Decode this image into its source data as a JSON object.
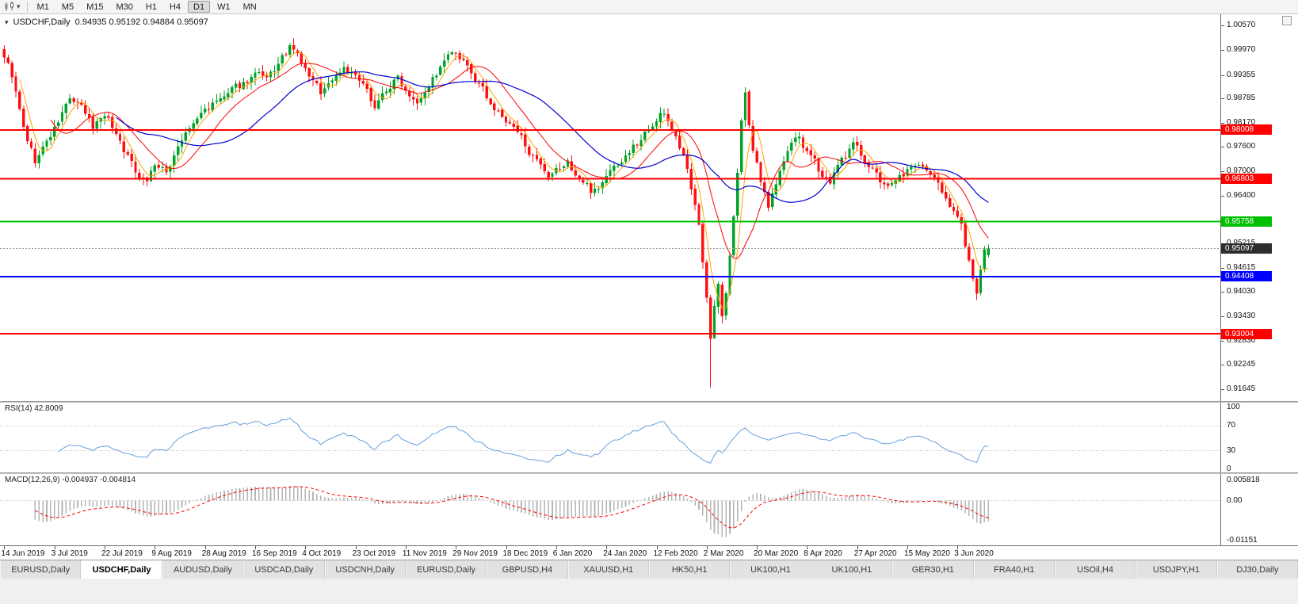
{
  "app": {
    "toolbar": {
      "timeframes": [
        "M1",
        "M5",
        "M15",
        "M30",
        "H1",
        "H4",
        "D1",
        "W1",
        "MN"
      ],
      "active_timeframe": "D1"
    }
  },
  "chart": {
    "title": "USDCHF,Daily",
    "ohlc_text": "0.94935 0.95192 0.94884 0.95097",
    "last_price": "0.95097",
    "last_price_tag_color": "#2e2e2e",
    "price_ticks": [
      "1.00570",
      "0.99970",
      "0.99355",
      "0.98785",
      "0.98170",
      "0.97600",
      "0.97000",
      "0.96400",
      "0.95215",
      "0.94615",
      "0.94030",
      "0.93430",
      "0.92830",
      "0.92245",
      "0.91645"
    ],
    "hlines": [
      {
        "price": 0.98008,
        "label": "0.98008",
        "color": "#ff0000"
      },
      {
        "price": 0.96803,
        "label": "0.96803",
        "color": "#ff0000"
      },
      {
        "price": 0.95758,
        "label": "0.95758",
        "color": "#00c000"
      },
      {
        "price": 0.94408,
        "label": "0.94408",
        "color": "#0000ff"
      },
      {
        "price": 0.93004,
        "label": "0.93004",
        "color": "#ff0000"
      }
    ],
    "colors": {
      "up": "#00a327",
      "down": "#ff0f0f",
      "ma_fast": "#ffa500",
      "ma_mid": "#ff0000",
      "ma_slow": "#0000d0",
      "rsi_line": "#6a9fdc",
      "macd_hist": "#b5b5b5",
      "macd_signal": "#ff0000",
      "last_price_line": "#999999"
    }
  },
  "rsi": {
    "label": "RSI(14) 42.8009",
    "ticks": [
      "100",
      "70",
      "30",
      "0"
    ],
    "dashed_levels": [
      70,
      30
    ]
  },
  "macd": {
    "label": "MACD(12,26,9) -0.004937 -0.004814",
    "ticks": [
      "0.005818",
      "0.00",
      "-0.01151"
    ]
  },
  "dates": [
    {
      "label": "14 Jun 2019",
      "i": 0
    },
    {
      "label": "3 Jul 2019",
      "i": 13
    },
    {
      "label": "22 Jul 2019",
      "i": 26
    },
    {
      "label": "9 Aug 2019",
      "i": 39
    },
    {
      "label": "28 Aug 2019",
      "i": 52
    },
    {
      "label": "16 Sep 2019",
      "i": 65
    },
    {
      "label": "4 Oct 2019",
      "i": 78
    },
    {
      "label": "23 Oct 2019",
      "i": 91
    },
    {
      "label": "11 Nov 2019",
      "i": 104
    },
    {
      "label": "29 Nov 2019",
      "i": 117
    },
    {
      "label": "18 Dec 2019",
      "i": 130
    },
    {
      "label": "6 Jan 2020",
      "i": 143
    },
    {
      "label": "24 Jan 2020",
      "i": 156
    },
    {
      "label": "12 Feb 2020",
      "i": 169
    },
    {
      "label": "2 Mar 2020",
      "i": 182
    },
    {
      "label": "20 Mar 2020",
      "i": 195
    },
    {
      "label": "8 Apr 2020",
      "i": 208
    },
    {
      "label": "27 Apr 2020",
      "i": 221
    },
    {
      "label": "15 May 2020",
      "i": 234
    },
    {
      "label": "3 Jun 2020",
      "i": 247
    }
  ],
  "tabs": {
    "active_index": 1,
    "items": [
      "EURUSD,Daily",
      "USDCHF,Daily",
      "AUDUSD,Daily",
      "USDCAD,Daily",
      "USDCNH,Daily",
      "EURUSD,Daily",
      "GBPUSD,H4",
      "XAUUSD,H1",
      "HK50,H1",
      "UK100,H1",
      "UK100,H1",
      "GER30,H1",
      "FRA40,H1",
      "USOil,H4",
      "USDJPY,H1",
      "DJ30,Daily"
    ],
    "note": "active tab shown raised white"
  },
  "chart_data": {
    "type": "candlestick",
    "symbol": "USDCHF",
    "timeframe": "Daily",
    "visible_range": {
      "start": "14 Jun 2019",
      "end": "Jun 2020"
    },
    "price_axis_range": [
      0.91645,
      1.0057
    ],
    "last_ohlc": {
      "open": 0.94935,
      "high": 0.95192,
      "low": 0.94884,
      "close": 0.95097
    },
    "horizontal_levels": [
      0.98008,
      0.96803,
      0.95758,
      0.94408,
      0.93004
    ],
    "candle_count": 256,
    "price_anchors": [
      [
        0,
        0.9985
      ],
      [
        2,
        0.9935
      ],
      [
        5,
        0.98
      ],
      [
        8,
        0.9722
      ],
      [
        10,
        0.9755
      ],
      [
        13,
        0.98
      ],
      [
        17,
        0.9878
      ],
      [
        20,
        0.985
      ],
      [
        23,
        0.9805
      ],
      [
        26,
        0.9845
      ],
      [
        30,
        0.9775
      ],
      [
        34,
        0.97
      ],
      [
        37,
        0.9682
      ],
      [
        39,
        0.9718
      ],
      [
        42,
        0.969
      ],
      [
        45,
        0.9765
      ],
      [
        48,
        0.98
      ],
      [
        52,
        0.985
      ],
      [
        56,
        0.9872
      ],
      [
        60,
        0.9898
      ],
      [
        65,
        0.9938
      ],
      [
        68,
        0.9915
      ],
      [
        71,
        0.9958
      ],
      [
        74,
        1.0
      ],
      [
        76,
        0.9978
      ],
      [
        78,
        0.9945
      ],
      [
        82,
        0.9892
      ],
      [
        85,
        0.9925
      ],
      [
        88,
        0.9958
      ],
      [
        91,
        0.993
      ],
      [
        94,
        0.9888
      ],
      [
        96,
        0.9862
      ],
      [
        99,
        0.99
      ],
      [
        102,
        0.9928
      ],
      [
        104,
        0.9902
      ],
      [
        107,
        0.988
      ],
      [
        110,
        0.9918
      ],
      [
        113,
        0.9952
      ],
      [
        116,
        0.9988
      ],
      [
        119,
        0.9958
      ],
      [
        122,
        0.992
      ],
      [
        125,
        0.988
      ],
      [
        128,
        0.9842
      ],
      [
        130,
        0.982
      ],
      [
        133,
        0.979
      ],
      [
        136,
        0.9752
      ],
      [
        139,
        0.9702
      ],
      [
        141,
        0.9668
      ],
      [
        143,
        0.9692
      ],
      [
        146,
        0.9718
      ],
      [
        149,
        0.968
      ],
      [
        152,
        0.9652
      ],
      [
        155,
        0.9672
      ],
      [
        156,
        0.969
      ],
      [
        159,
        0.9718
      ],
      [
        162,
        0.9748
      ],
      [
        165,
        0.9778
      ],
      [
        168,
        0.9822
      ],
      [
        170,
        0.9848
      ],
      [
        172,
        0.982
      ],
      [
        174,
        0.9788
      ],
      [
        176,
        0.9738
      ],
      [
        178,
        0.965
      ],
      [
        180,
        0.956
      ],
      [
        182,
        0.94
      ],
      [
        183,
        0.93
      ],
      [
        184,
        0.9372
      ],
      [
        185,
        0.942
      ],
      [
        186,
        0.934
      ],
      [
        187,
        0.94
      ],
      [
        188,
        0.949
      ],
      [
        189,
        0.958
      ],
      [
        190,
        0.97
      ],
      [
        191,
        0.983
      ],
      [
        192,
        0.9885
      ],
      [
        193,
        0.98
      ],
      [
        194,
        0.9748
      ],
      [
        196,
        0.968
      ],
      [
        198,
        0.9618
      ],
      [
        200,
        0.9672
      ],
      [
        203,
        0.9748
      ],
      [
        206,
        0.9782
      ],
      [
        208,
        0.9742
      ],
      [
        211,
        0.97
      ],
      [
        214,
        0.9678
      ],
      [
        217,
        0.9722
      ],
      [
        220,
        0.9762
      ],
      [
        222,
        0.9738
      ],
      [
        225,
        0.9708
      ],
      [
        228,
        0.9658
      ],
      [
        231,
        0.9672
      ],
      [
        234,
        0.9702
      ],
      [
        237,
        0.9718
      ],
      [
        240,
        0.9682
      ],
      [
        243,
        0.9648
      ],
      [
        246,
        0.9612
      ],
      [
        248,
        0.9565
      ],
      [
        250,
        0.948
      ],
      [
        252,
        0.9398
      ],
      [
        253,
        0.9448
      ],
      [
        254,
        0.9492
      ],
      [
        255,
        0.95097
      ]
    ],
    "wick_overrides": [
      {
        "i": 0,
        "high": 1.0008
      },
      {
        "i": 183,
        "low": 0.9168
      },
      {
        "i": 192,
        "high": 0.9905
      },
      {
        "i": 252,
        "low": 0.9383
      }
    ],
    "indicators": {
      "moving_averages": [
        {
          "name": "fast",
          "period": 5,
          "color": "#ffa500"
        },
        {
          "name": "mid",
          "period": 13,
          "color": "#ff0000"
        },
        {
          "name": "slow",
          "period": 30,
          "color": "#0000d0"
        }
      ],
      "rsi": {
        "period": 14,
        "current": 42.8009,
        "axis": [
          100,
          70,
          30,
          0
        ]
      },
      "macd": {
        "fast": 12,
        "slow": 26,
        "signal": 9,
        "current_macd": -0.004937,
        "current_signal": -0.004814,
        "axis_max": 0.005818,
        "axis_min": -0.01151
      }
    }
  }
}
